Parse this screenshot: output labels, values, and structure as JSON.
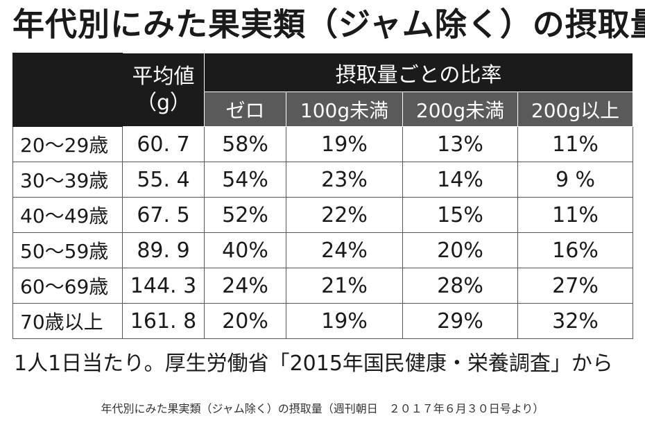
{
  "title": "年代別にみた果実類（ジャム除く）の摂取量",
  "table": {
    "col_mean": "平均値\n（g）",
    "group_header": "摂取量ごとの比率",
    "sub_headers": [
      "ゼロ",
      "100g未満",
      "200g未満",
      "200g以上"
    ],
    "rows": [
      {
        "age": "20～29歳",
        "mean": "60. 7",
        "zero": "58%",
        "lt100": "19%",
        "lt200": "13%",
        "ge200": "11%"
      },
      {
        "age": "30～39歳",
        "mean": "55. 4",
        "zero": "54%",
        "lt100": "23%",
        "lt200": "14%",
        "ge200": "9 %"
      },
      {
        "age": "40～49歳",
        "mean": "67. 5",
        "zero": "52%",
        "lt100": "22%",
        "lt200": "15%",
        "ge200": "11%"
      },
      {
        "age": "50～59歳",
        "mean": "89. 9",
        "zero": "40%",
        "lt100": "24%",
        "lt200": "20%",
        "ge200": "16%"
      },
      {
        "age": "60～69歳",
        "mean": "144. 3",
        "zero": "24%",
        "lt100": "21%",
        "lt200": "28%",
        "ge200": "27%"
      },
      {
        "age": "70歳以上",
        "mean": "161. 8",
        "zero": "20%",
        "lt100": "19%",
        "lt200": "29%",
        "ge200": "32%"
      }
    ]
  },
  "note": "1人1日当たり。厚生労働省「2015年国民健康・栄養調査」から",
  "caption": "年代別にみた果実類（ジャム除く）の摂取量（週刊朝日　２０１７年６月３０日号より）"
}
